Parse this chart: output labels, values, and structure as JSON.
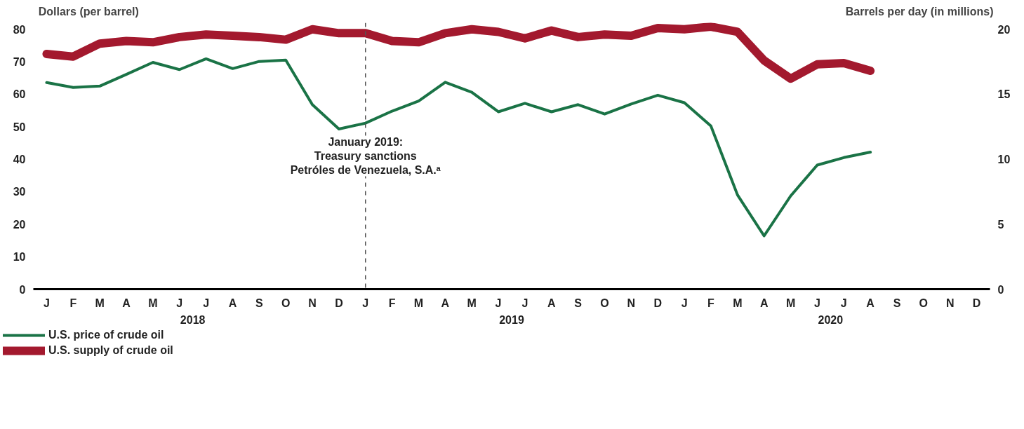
{
  "chart_data": {
    "type": "line",
    "ylabel": "Dollars (per barrel)",
    "y2label": "Barrels per day (in millions)",
    "categories": [
      "J",
      "F",
      "M",
      "A",
      "M",
      "J",
      "J",
      "A",
      "S",
      "O",
      "N",
      "D",
      "J",
      "F",
      "M",
      "A",
      "M",
      "J",
      "J",
      "A",
      "S",
      "O",
      "N",
      "D",
      "J",
      "F",
      "M",
      "A",
      "M",
      "J",
      "J",
      "A",
      "S",
      "O",
      "N",
      "D"
    ],
    "annotations": [
      "2018",
      "2019",
      "2020",
      "January 2019:\nTreasury sanctions\nPetróles de Venezuela, S.A.ᵃ"
    ],
    "series": [
      {
        "name": "U.S. price of crude oil",
        "color": "#1a7346",
        "values": [
          63.6,
          62.1,
          62.5,
          66.1,
          69.8,
          67.6,
          70.9,
          67.9,
          70.1,
          70.5,
          56.8,
          49.3,
          51.1,
          54.8,
          57.9,
          63.7,
          60.6,
          54.6,
          57.2,
          54.6,
          56.8,
          53.9,
          57.0,
          59.7,
          57.4,
          50.2,
          29.0,
          16.4,
          28.7,
          38.2,
          40.5,
          42.2,
          null,
          null,
          null,
          null
        ]
      },
      {
        "name": "U.S. supply of crude oil",
        "color": "#a3192e",
        "axis": "y2",
        "values": [
          18.1,
          17.9,
          18.9,
          19.1,
          19.0,
          19.4,
          19.6,
          19.5,
          19.4,
          19.2,
          20.0,
          19.7,
          19.7,
          19.1,
          19.0,
          19.7,
          20.0,
          19.8,
          19.3,
          19.9,
          19.4,
          19.6,
          19.5,
          20.1,
          20.0,
          20.2,
          19.8,
          17.6,
          16.2,
          17.3,
          17.4,
          16.8,
          null,
          null,
          null,
          null
        ]
      }
    ],
    "ylim": [
      0,
      82
    ],
    "yticks": [
      0,
      10,
      20,
      30,
      40,
      50,
      60,
      70,
      80
    ],
    "y2lim": [
      0,
      20.5
    ],
    "y2ticks": [
      0,
      5,
      10,
      15,
      20
    ],
    "legend": "bottom left",
    "line_style": "solid"
  }
}
